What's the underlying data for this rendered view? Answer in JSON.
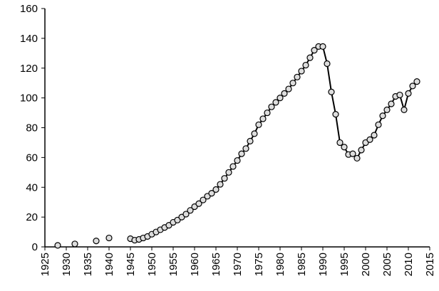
{
  "chart_data": {
    "type": "line",
    "x": [
      1928,
      1930,
      1932,
      1935,
      1937,
      1939,
      1940,
      1943,
      1945,
      1946,
      1947,
      1948,
      1949,
      1950,
      1951,
      1952,
      1953,
      1954,
      1955,
      1956,
      1957,
      1958,
      1959,
      1960,
      1961,
      1962,
      1963,
      1964,
      1965,
      1966,
      1967,
      1968,
      1969,
      1970,
      1971,
      1972,
      1973,
      1974,
      1975,
      1976,
      1977,
      1978,
      1979,
      1980,
      1981,
      1982,
      1983,
      1984,
      1985,
      1986,
      1987,
      1988,
      1989,
      1990,
      1991,
      1992,
      1993,
      1994,
      1995,
      1996,
      1997,
      1998,
      1999,
      2000,
      2001,
      2002,
      2003,
      2004,
      2005,
      2006,
      2007,
      2008,
      2009,
      2010,
      2011,
      2012
    ],
    "series": [
      {
        "color": "#000000",
        "values": [
          1,
          null,
          2,
          null,
          4,
          null,
          6,
          null,
          5.5,
          4.5,
          5,
          6,
          7,
          8.5,
          10,
          11.5,
          13,
          14.5,
          16.5,
          18,
          20,
          22,
          24.5,
          27,
          29,
          31.5,
          34,
          36,
          38.5,
          42,
          46,
          50,
          54,
          58,
          62.5,
          66,
          71,
          76,
          82,
          86,
          90,
          94,
          97,
          100,
          103,
          106,
          110,
          114,
          118,
          122,
          127,
          132,
          134.5,
          134.5,
          123,
          104,
          89,
          70,
          67,
          62,
          62.5,
          59.5,
          65,
          70,
          72,
          75,
          82,
          88,
          92,
          96,
          101,
          102,
          92,
          103,
          108,
          111
        ]
      }
    ],
    "xlim": [
      1925,
      2015
    ],
    "xticks": [
      1925,
      1930,
      1935,
      1940,
      1945,
      1950,
      1955,
      1960,
      1965,
      1970,
      1975,
      1980,
      1985,
      1990,
      1995,
      2000,
      2005,
      2010,
      2015
    ],
    "ylim": [
      0,
      160
    ],
    "yticks": [
      0,
      20,
      40,
      60,
      80,
      100,
      120,
      140,
      160
    ]
  }
}
